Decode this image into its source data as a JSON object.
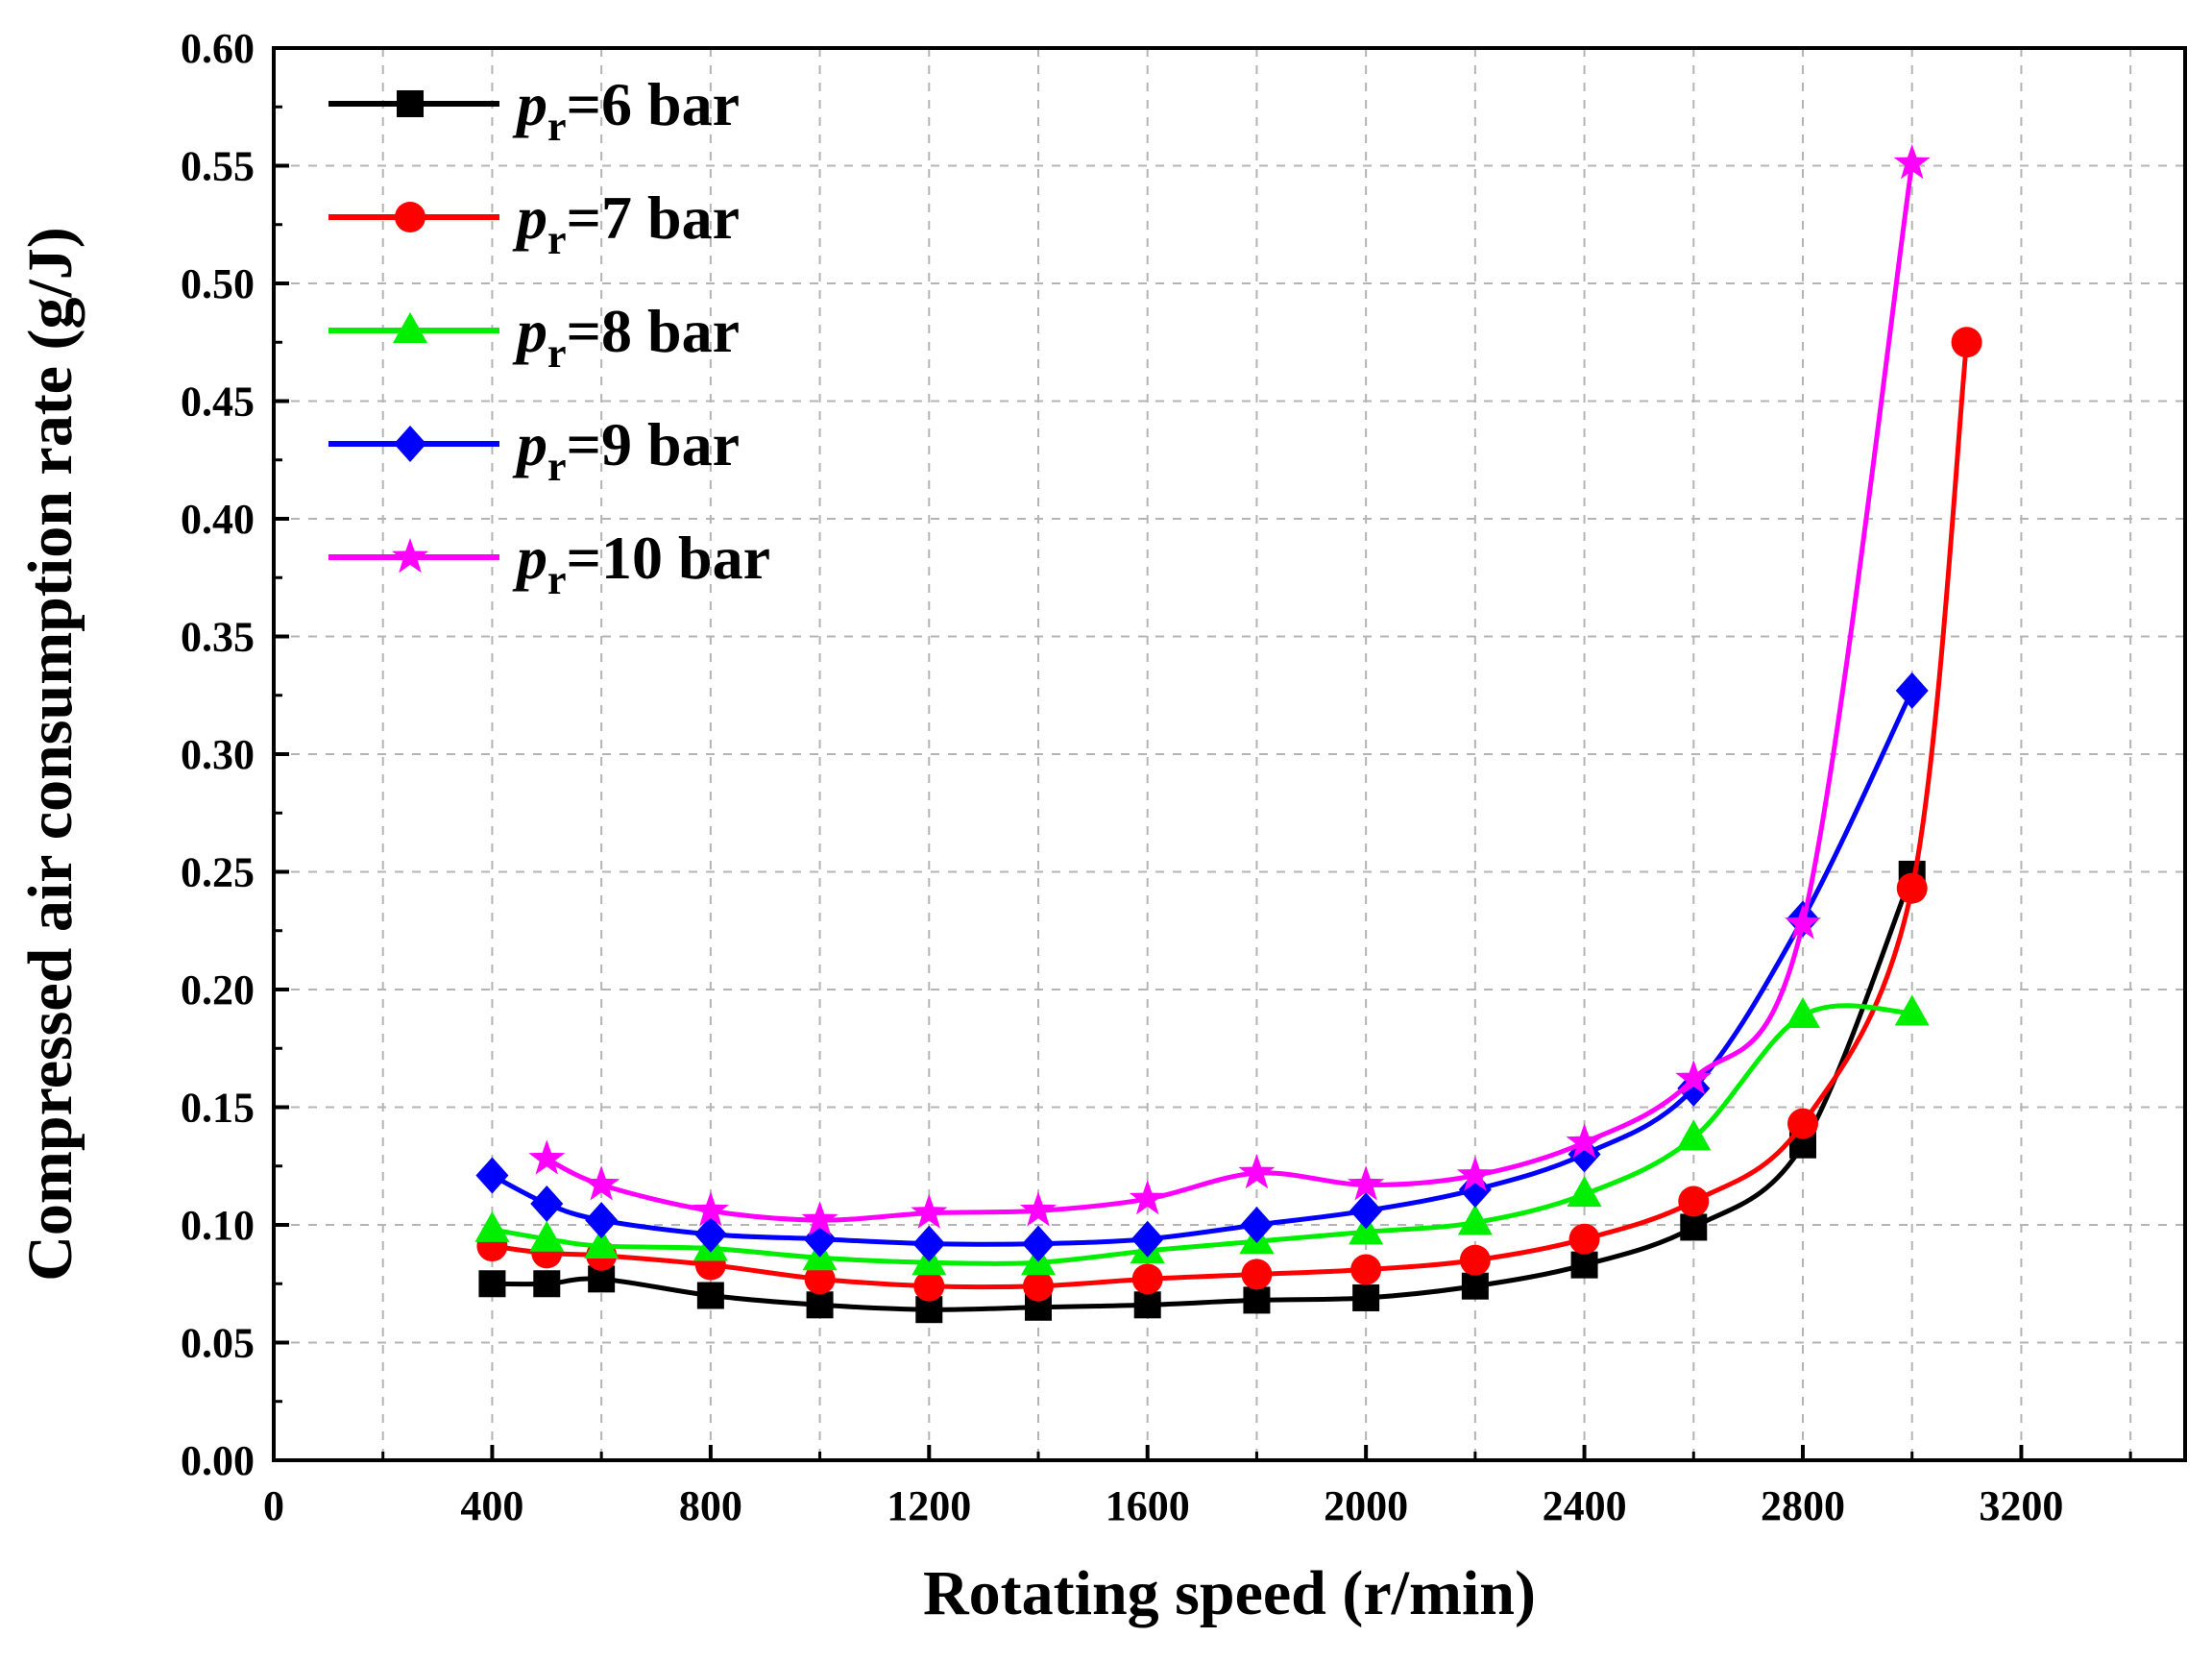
{
  "chart_data": {
    "type": "line",
    "title": "",
    "xlabel": "Rotating speed (r/min)",
    "ylabel": "Compressed air consumption rate (g/J)",
    "xlim": [
      0,
      3500
    ],
    "ylim": [
      0,
      0.6
    ],
    "xticks": [
      0,
      400,
      800,
      1200,
      1600,
      2000,
      2400,
      2800,
      3200
    ],
    "xtick_labels": [
      "0",
      "400",
      "800",
      "1200",
      "1600",
      "2000",
      "2400",
      "2800",
      "3200"
    ],
    "yticks": [
      0,
      0.05,
      0.1,
      0.15,
      0.2,
      0.25,
      0.3,
      0.35,
      0.4,
      0.45,
      0.5,
      0.55,
      0.6
    ],
    "ytick_labels": [
      "0.00",
      "0.05",
      "0.10",
      "0.15",
      "0.20",
      "0.25",
      "0.30",
      "0.35",
      "0.40",
      "0.45",
      "0.50",
      "0.55",
      "0.60"
    ],
    "grid": true,
    "legend_position": "top-left",
    "series": [
      {
        "name": "p_r=6 bar",
        "legend_symbol": "p",
        "legend_subscript": "r",
        "legend_suffix": "=6 bar",
        "color": "#000000",
        "marker": "square",
        "x": [
          400,
          500,
          600,
          800,
          1000,
          1200,
          1400,
          1600,
          1800,
          2000,
          2200,
          2400,
          2600,
          2800,
          3000
        ],
        "y": [
          0.075,
          0.075,
          0.077,
          0.07,
          0.066,
          0.064,
          0.065,
          0.066,
          0.068,
          0.069,
          0.074,
          0.083,
          0.099,
          0.134,
          0.249
        ]
      },
      {
        "name": "p_r=7 bar",
        "legend_symbol": "p",
        "legend_subscript": "r",
        "legend_suffix": "=7 bar",
        "color": "#ff0000",
        "marker": "circle",
        "x": [
          400,
          500,
          600,
          800,
          1000,
          1200,
          1400,
          1600,
          1800,
          2000,
          2200,
          2400,
          2600,
          2800,
          3000,
          3100
        ],
        "y": [
          0.091,
          0.088,
          0.087,
          0.083,
          0.077,
          0.074,
          0.074,
          0.077,
          0.079,
          0.081,
          0.085,
          0.094,
          0.11,
          0.143,
          0.243,
          0.475
        ]
      },
      {
        "name": "p_r=8 bar",
        "legend_symbol": "p",
        "legend_subscript": "r",
        "legend_suffix": "=8 bar",
        "color": "#00ee00",
        "marker": "triangle",
        "x": [
          400,
          500,
          600,
          800,
          1000,
          1200,
          1400,
          1600,
          1800,
          2000,
          2200,
          2400,
          2600,
          2800,
          3000
        ],
        "y": [
          0.098,
          0.094,
          0.091,
          0.09,
          0.086,
          0.084,
          0.084,
          0.089,
          0.093,
          0.097,
          0.101,
          0.113,
          0.137,
          0.189,
          0.19
        ]
      },
      {
        "name": "p_r=9 bar",
        "legend_symbol": "p",
        "legend_subscript": "r",
        "legend_suffix": "=9 bar",
        "color": "#0000ff",
        "marker": "diamond",
        "x": [
          400,
          500,
          600,
          800,
          1000,
          1200,
          1400,
          1600,
          1800,
          2000,
          2200,
          2400,
          2600,
          2800,
          3000
        ],
        "y": [
          0.121,
          0.109,
          0.102,
          0.096,
          0.094,
          0.092,
          0.092,
          0.094,
          0.1,
          0.106,
          0.115,
          0.13,
          0.158,
          0.23,
          0.327
        ]
      },
      {
        "name": "p_r=10 bar",
        "legend_symbol": "p",
        "legend_subscript": "r",
        "legend_suffix": "=10 bar",
        "color": "#ff00ff",
        "marker": "star",
        "x": [
          500,
          600,
          800,
          1000,
          1200,
          1400,
          1600,
          1800,
          2000,
          2200,
          2400,
          2600,
          2800,
          3000
        ],
        "y": [
          0.128,
          0.117,
          0.106,
          0.102,
          0.105,
          0.106,
          0.111,
          0.122,
          0.117,
          0.121,
          0.135,
          0.162,
          0.228,
          0.551
        ]
      }
    ]
  }
}
